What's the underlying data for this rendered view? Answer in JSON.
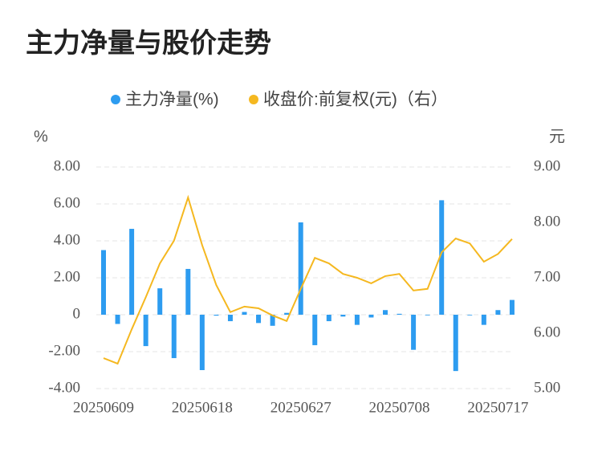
{
  "chart_data": {
    "type": "bar_line",
    "title": "主力净量与股价走势",
    "y_label": "%",
    "y2_label": "元",
    "categories": [
      "20250609",
      null,
      null,
      null,
      null,
      null,
      null,
      "20250618",
      null,
      null,
      null,
      null,
      null,
      null,
      "20250627",
      null,
      null,
      null,
      null,
      null,
      null,
      "20250708",
      null,
      null,
      null,
      null,
      null,
      null,
      "20250717",
      null
    ],
    "series": [
      {
        "name": "主力净量(%)",
        "type": "bar",
        "color": "#2d9cf0",
        "values": [
          3.5,
          -0.5,
          4.65,
          -1.7,
          1.43,
          -2.35,
          2.48,
          -3.0,
          -0.05,
          -0.35,
          0.15,
          -0.45,
          -0.6,
          0.1,
          5.0,
          -1.65,
          -0.35,
          -0.1,
          -0.55,
          -0.15,
          0.25,
          0.05,
          -1.9,
          -0.02,
          6.2,
          -3.05,
          -0.02,
          -0.55,
          0.25,
          0.8
        ]
      },
      {
        "name": "收盘价:前复权(元)（右）",
        "type": "line",
        "axis": "y2",
        "color": "#f5b820",
        "values": [
          5.55,
          5.45,
          6.07,
          6.65,
          7.26,
          7.67,
          8.45,
          7.59,
          6.87,
          6.38,
          6.48,
          6.45,
          6.32,
          6.22,
          6.8,
          7.36,
          7.26,
          7.07,
          7.0,
          6.9,
          7.03,
          7.07,
          6.77,
          6.8,
          7.46,
          7.71,
          7.62,
          7.29,
          7.43,
          7.7
        ]
      }
    ],
    "ylim": [
      -4,
      8
    ],
    "yticks": [
      {
        "value": 8,
        "label": "8.00"
      },
      {
        "value": 6,
        "label": "6.00"
      },
      {
        "value": 4,
        "label": "4.00"
      },
      {
        "value": 2,
        "label": "2.00"
      },
      0,
      {
        "value": -2,
        "label": "-2.00"
      },
      {
        "value": -4,
        "label": "-4.00"
      }
    ],
    "y2lim": [
      5,
      9
    ],
    "y2ticks": [
      {
        "value": 9,
        "label": "9.00"
      },
      {
        "value": 8,
        "label": "8.00"
      },
      {
        "value": 7,
        "label": "7.00"
      },
      {
        "value": 6,
        "label": "6.00"
      },
      {
        "value": 5,
        "label": "5.00"
      }
    ],
    "grid": true
  }
}
